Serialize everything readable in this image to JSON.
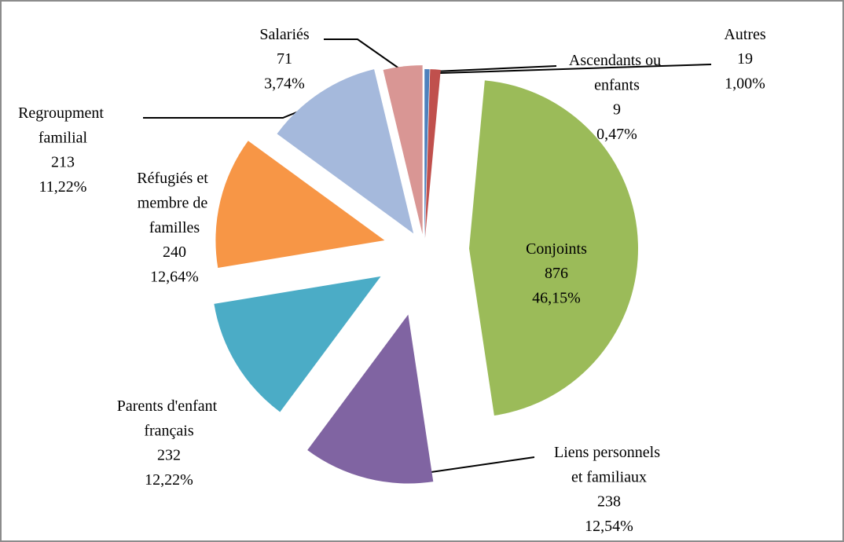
{
  "chart_data": {
    "type": "pie",
    "categories": [
      "Ascendants ou enfants",
      "Autres",
      "Conjoints",
      "Liens personnels et familiaux",
      "Parents d'enfant français",
      "Réfugiés et membre de familles",
      "Regroupment familial",
      "Salariés"
    ],
    "values": [
      9,
      19,
      876,
      238,
      232,
      240,
      213,
      71
    ],
    "percent_values": [
      0.47,
      1.0,
      46.15,
      12.54,
      12.22,
      12.64,
      11.22,
      3.74
    ],
    "percent_labels": [
      "0,47%",
      "1,00%",
      "46,15%",
      "12,54%",
      "12,22%",
      "12,64%",
      "11,22%",
      "3,74%"
    ],
    "colors": [
      "#4f81bd",
      "#c0504d",
      "#9bbb59",
      "#8064a2",
      "#4bacc6",
      "#f79646",
      "#a5b9dc",
      "#d99694"
    ]
  }
}
